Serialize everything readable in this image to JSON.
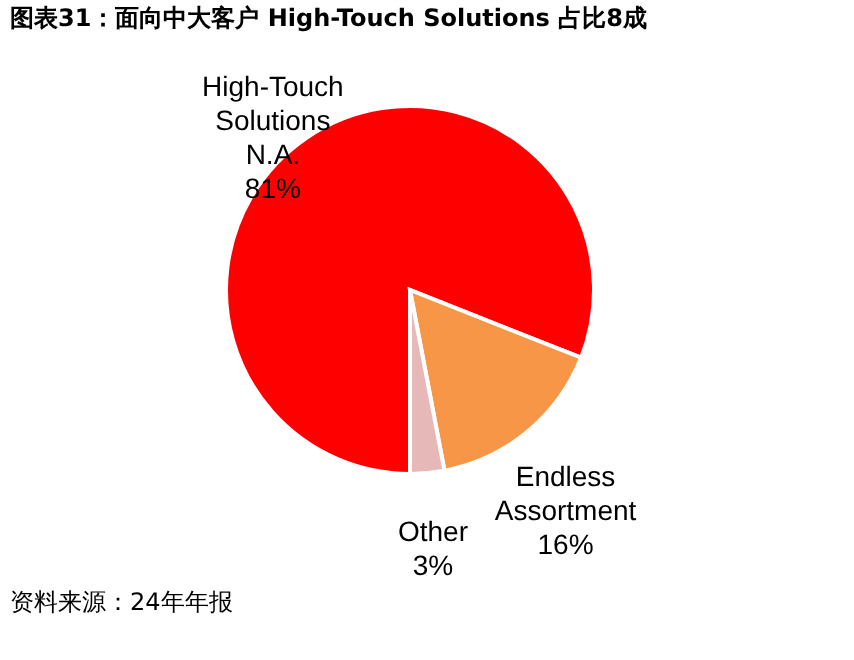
{
  "chart_data": {
    "type": "pie",
    "title": "图表31：面向中大客户 High-Touch Solutions 占比8成",
    "categories": [
      "High-Touch Solutions N.A.",
      "Endless Assortment",
      "Other"
    ],
    "values": [
      81,
      16,
      3
    ],
    "colors": [
      "#ff0000",
      "#f79646",
      "#e6b9b8"
    ],
    "value_labels": [
      "81%",
      "16%",
      "3%"
    ],
    "legend": false,
    "annotations": [
      "资料来源：24年年报"
    ]
  }
}
